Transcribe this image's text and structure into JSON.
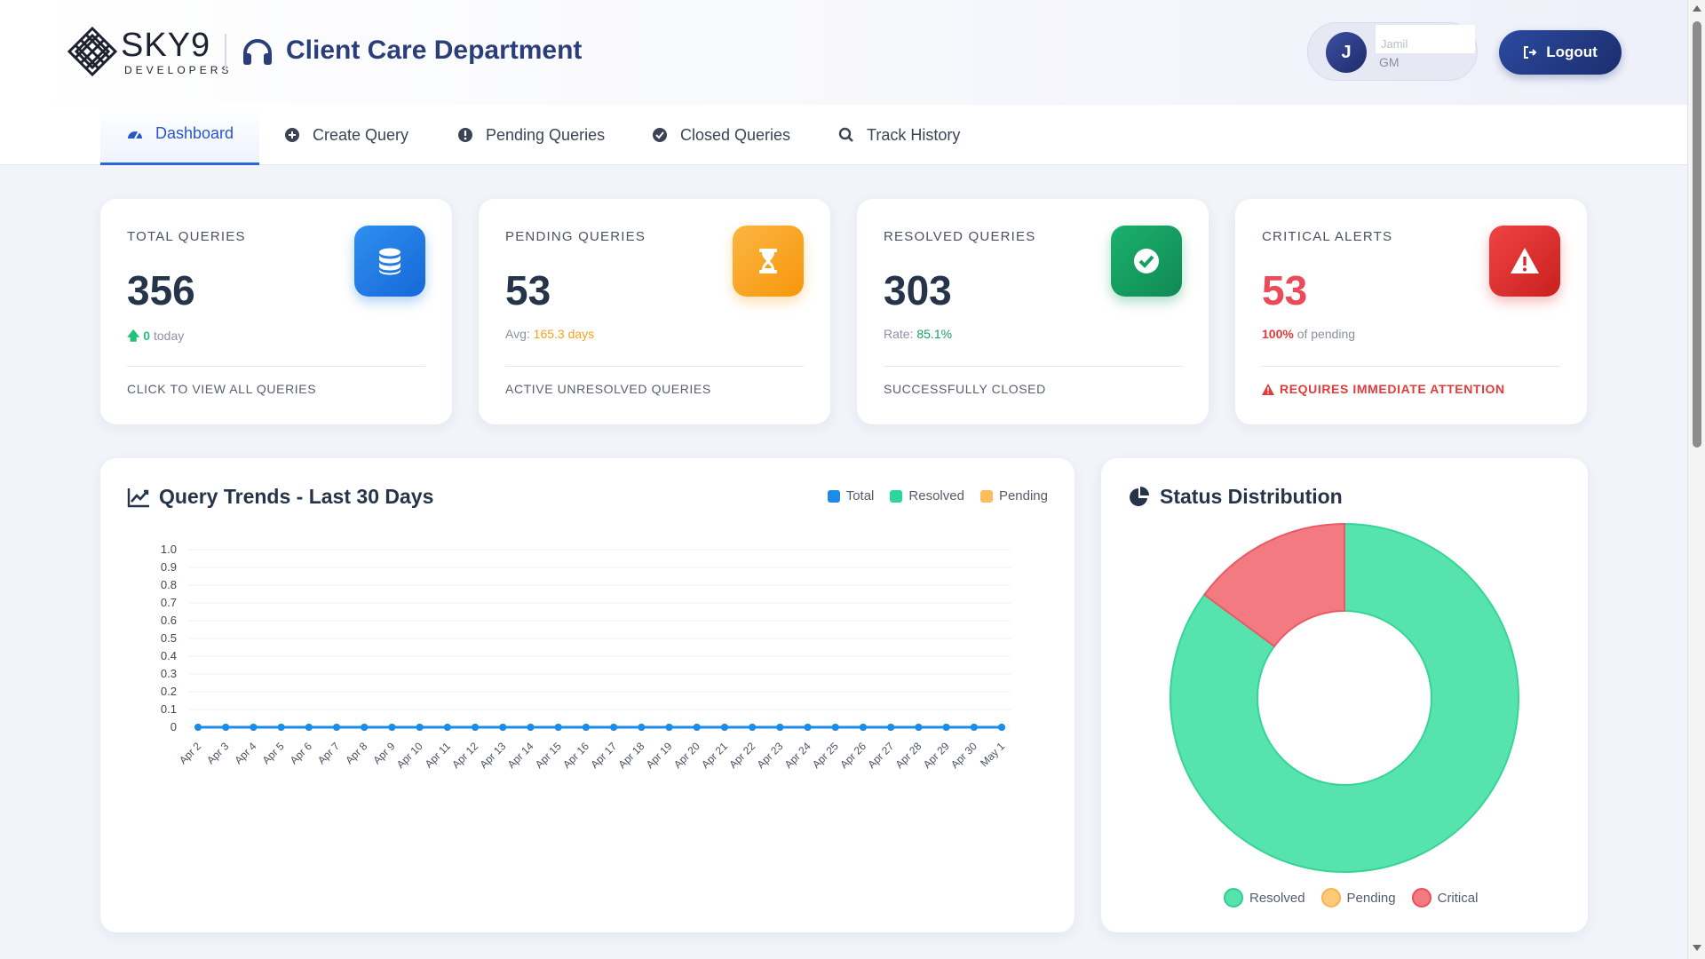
{
  "header": {
    "brand": "SKY9",
    "brand_sub": "DEVELOPERS",
    "title": "Client Care Department",
    "user": {
      "initial": "J",
      "name": "Jamil",
      "role": "GM"
    },
    "logout_label": "Logout"
  },
  "nav": {
    "tabs": [
      {
        "label": "Dashboard",
        "icon": "gauge-icon",
        "active": true
      },
      {
        "label": "Create Query",
        "icon": "plus-circle-icon"
      },
      {
        "label": "Pending Queries",
        "icon": "exclamation-circle-icon"
      },
      {
        "label": "Closed Queries",
        "icon": "check-circle-icon"
      },
      {
        "label": "Track History",
        "icon": "search-icon"
      }
    ]
  },
  "stats": {
    "total": {
      "label": "TOTAL QUERIES",
      "value": "356",
      "delta": "0",
      "delta_suffix": "today",
      "footer": "CLICK TO VIEW ALL QUERIES",
      "icon": "database-icon",
      "color": "#1f7de0"
    },
    "pending": {
      "label": "PENDING QUERIES",
      "value": "53",
      "avg_label": "Avg:",
      "avg_value": "165.3 days",
      "footer": "ACTIVE UNRESOLVED QUERIES",
      "icon": "hourglass-icon",
      "color": "#f7a21b"
    },
    "resolved": {
      "label": "RESOLVED QUERIES",
      "value": "303",
      "rate_label": "Rate:",
      "rate_value": "85.1%",
      "footer": "SUCCESSFULLY CLOSED",
      "icon": "check-circle-icon",
      "color": "#17a062"
    },
    "critical": {
      "label": "CRITICAL ALERTS",
      "value": "53",
      "pct_value": "100%",
      "pct_suffix": "of pending",
      "footer": "REQUIRES IMMEDIATE ATTENTION",
      "icon": "warning-triangle-icon",
      "color": "#e23b3b"
    }
  },
  "trends": {
    "title": "Query Trends - Last 30 Days",
    "legend": [
      {
        "name": "Total",
        "color": "#1f8be8"
      },
      {
        "name": "Resolved",
        "color": "#2ed69a"
      },
      {
        "name": "Pending",
        "color": "#fbbd5d"
      }
    ]
  },
  "distribution": {
    "title": "Status Distribution",
    "legend": [
      {
        "name": "Resolved",
        "color": "#56e3ad"
      },
      {
        "name": "Pending",
        "color": "#fdc97a"
      },
      {
        "name": "Critical",
        "color": "#f47a82"
      }
    ]
  },
  "chart_data": [
    {
      "type": "line",
      "title": "Query Trends - Last 30 Days",
      "x": [
        "Apr 2",
        "Apr 3",
        "Apr 4",
        "Apr 5",
        "Apr 6",
        "Apr 7",
        "Apr 8",
        "Apr 9",
        "Apr 10",
        "Apr 11",
        "Apr 12",
        "Apr 13",
        "Apr 14",
        "Apr 15",
        "Apr 16",
        "Apr 17",
        "Apr 18",
        "Apr 19",
        "Apr 20",
        "Apr 21",
        "Apr 22",
        "Apr 23",
        "Apr 24",
        "Apr 25",
        "Apr 26",
        "Apr 27",
        "Apr 28",
        "Apr 29",
        "Apr 30",
        "May 1"
      ],
      "series": [
        {
          "name": "Total",
          "values": [
            0,
            0,
            0,
            0,
            0,
            0,
            0,
            0,
            0,
            0,
            0,
            0,
            0,
            0,
            0,
            0,
            0,
            0,
            0,
            0,
            0,
            0,
            0,
            0,
            0,
            0,
            0,
            0,
            0,
            0
          ]
        },
        {
          "name": "Resolved",
          "values": [
            0,
            0,
            0,
            0,
            0,
            0,
            0,
            0,
            0,
            0,
            0,
            0,
            0,
            0,
            0,
            0,
            0,
            0,
            0,
            0,
            0,
            0,
            0,
            0,
            0,
            0,
            0,
            0,
            0,
            0
          ]
        },
        {
          "name": "Pending",
          "values": [
            0,
            0,
            0,
            0,
            0,
            0,
            0,
            0,
            0,
            0,
            0,
            0,
            0,
            0,
            0,
            0,
            0,
            0,
            0,
            0,
            0,
            0,
            0,
            0,
            0,
            0,
            0,
            0,
            0,
            0
          ]
        }
      ],
      "yticks": [
        "0",
        "0.1",
        "0.2",
        "0.3",
        "0.4",
        "0.5",
        "0.6",
        "0.7",
        "0.8",
        "0.9",
        "1.0"
      ],
      "ylim": [
        0,
        1
      ],
      "grid": true,
      "legend": "top-right"
    },
    {
      "type": "pie",
      "title": "Status Distribution",
      "categories": [
        "Resolved",
        "Pending",
        "Critical"
      ],
      "values": [
        303,
        0,
        53
      ],
      "donut": true,
      "legend": "bottom"
    }
  ]
}
